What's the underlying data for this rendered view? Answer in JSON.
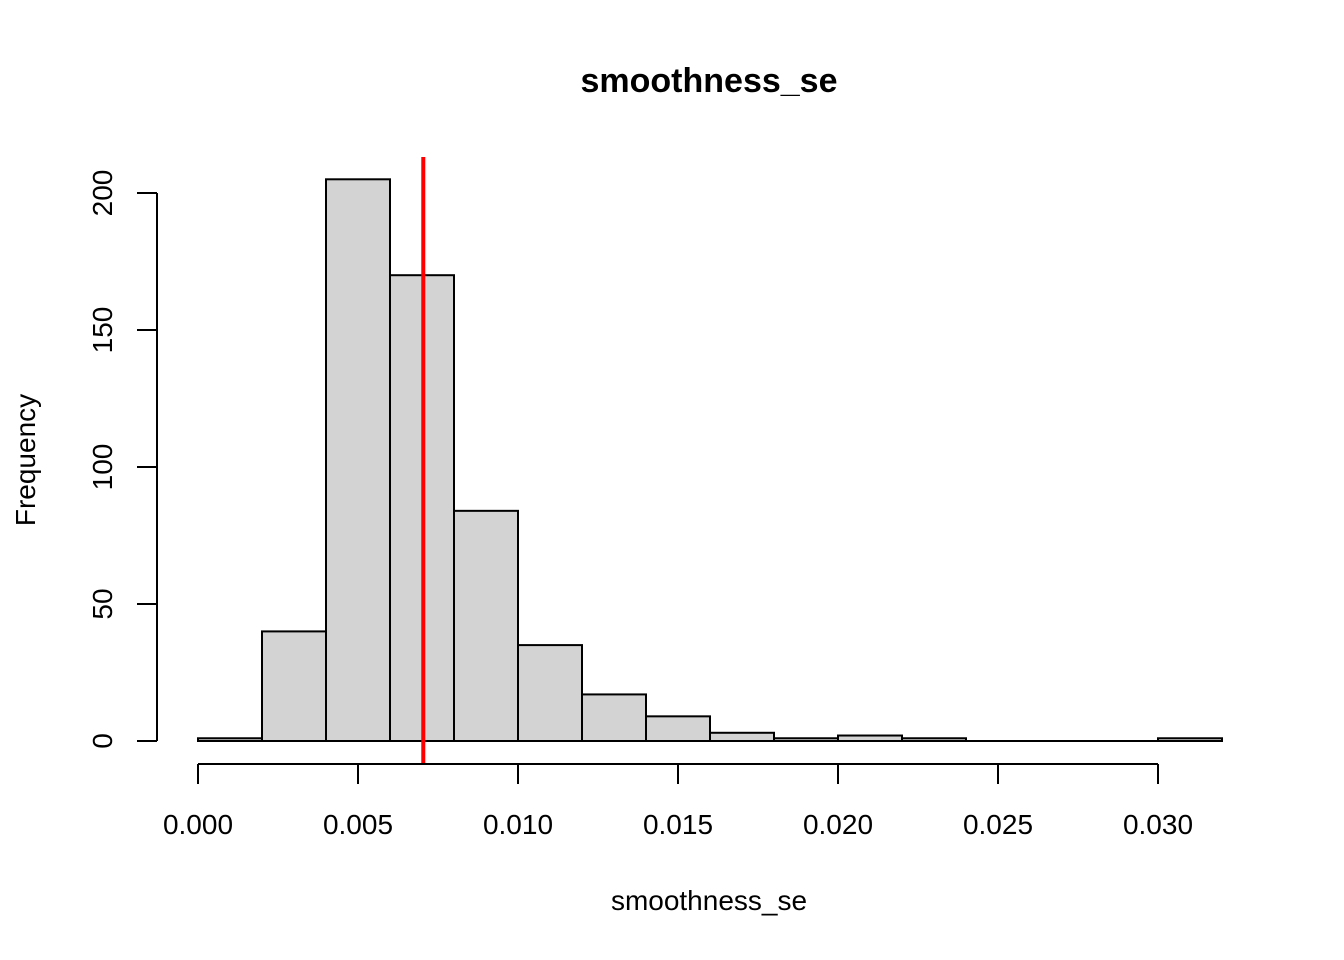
{
  "chart_data": {
    "type": "histogram",
    "title": "smoothness_se",
    "xlabel": "smoothness_se",
    "ylabel": "Frequency",
    "xlim": [
      0.0,
      0.032
    ],
    "ylim": [
      0,
      205
    ],
    "x_ticks": [
      0.0,
      0.005,
      0.01,
      0.015,
      0.02,
      0.025,
      0.03
    ],
    "x_tick_labels": [
      "0.000",
      "0.005",
      "0.010",
      "0.015",
      "0.020",
      "0.025",
      "0.030"
    ],
    "y_ticks": [
      0,
      50,
      100,
      150,
      200
    ],
    "y_tick_labels": [
      "0",
      "50",
      "100",
      "150",
      "200"
    ],
    "bins": [
      {
        "x0": 0.0,
        "x1": 0.002,
        "count": 1
      },
      {
        "x0": 0.002,
        "x1": 0.004,
        "count": 40
      },
      {
        "x0": 0.004,
        "x1": 0.006,
        "count": 205
      },
      {
        "x0": 0.006,
        "x1": 0.008,
        "count": 170
      },
      {
        "x0": 0.008,
        "x1": 0.01,
        "count": 84
      },
      {
        "x0": 0.01,
        "x1": 0.012,
        "count": 35
      },
      {
        "x0": 0.012,
        "x1": 0.014,
        "count": 17
      },
      {
        "x0": 0.014,
        "x1": 0.016,
        "count": 9
      },
      {
        "x0": 0.016,
        "x1": 0.018,
        "count": 3
      },
      {
        "x0": 0.018,
        "x1": 0.02,
        "count": 1
      },
      {
        "x0": 0.02,
        "x1": 0.022,
        "count": 2
      },
      {
        "x0": 0.022,
        "x1": 0.024,
        "count": 1
      },
      {
        "x0": 0.024,
        "x1": 0.026,
        "count": 0
      },
      {
        "x0": 0.026,
        "x1": 0.028,
        "count": 0
      },
      {
        "x0": 0.028,
        "x1": 0.03,
        "count": 0
      },
      {
        "x0": 0.03,
        "x1": 0.032,
        "count": 1
      }
    ],
    "reference_line": {
      "x": 0.00704,
      "color": "#ff0000"
    },
    "bar_fill": "#d3d3d3",
    "bar_stroke": "#000000",
    "grid": false
  }
}
